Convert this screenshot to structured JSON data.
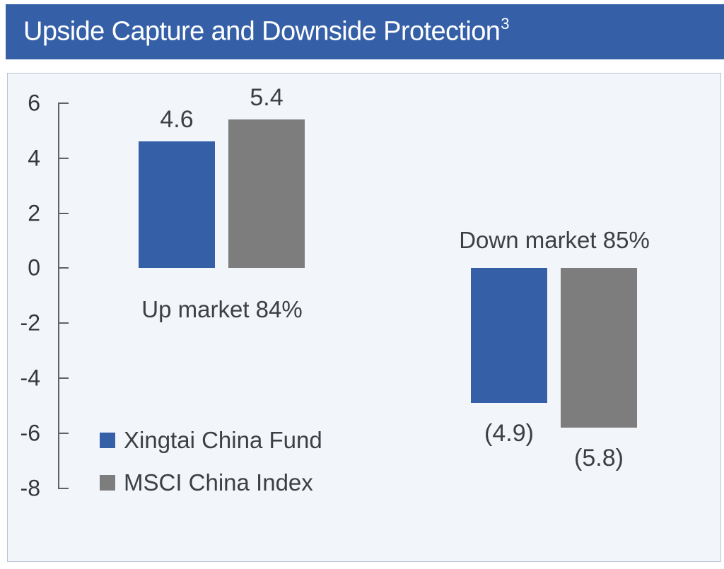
{
  "header": {
    "title": "Upside Capture and Downside Protection",
    "footnote_marker": "3"
  },
  "colors": {
    "accent_blue": "#3560A8",
    "gray": "#7D7D7D",
    "header_bg": "#3560A8",
    "header_text": "#FFFFFF",
    "panel_bg": "#F2F6FB",
    "text": "#3C4043",
    "axis": "#5F6368"
  },
  "chart_data": {
    "type": "bar",
    "title": "Upside Capture and Downside Protection³",
    "series": [
      {
        "name": "Xingtai China Fund",
        "color_key": "accent_blue"
      },
      {
        "name": "MSCI China Index",
        "color_key": "gray"
      }
    ],
    "groups": [
      {
        "category": "Up market 84%",
        "category_label_position": "below",
        "bars": [
          {
            "series_index": 0,
            "value": 4.6,
            "label": "4.6"
          },
          {
            "series_index": 1,
            "value": 5.4,
            "label": "5.4"
          }
        ]
      },
      {
        "category": "Down market 85%",
        "category_label_position": "above",
        "bars": [
          {
            "series_index": 0,
            "value": -4.9,
            "label": "(4.9)"
          },
          {
            "series_index": 1,
            "value": -5.8,
            "label": "(5.8)"
          }
        ]
      }
    ],
    "yticks": [
      6,
      4,
      2,
      0,
      -2,
      -4,
      -6,
      -8
    ],
    "ylim": [
      -8,
      6
    ],
    "grid": false,
    "legend_position": "bottom-left"
  }
}
